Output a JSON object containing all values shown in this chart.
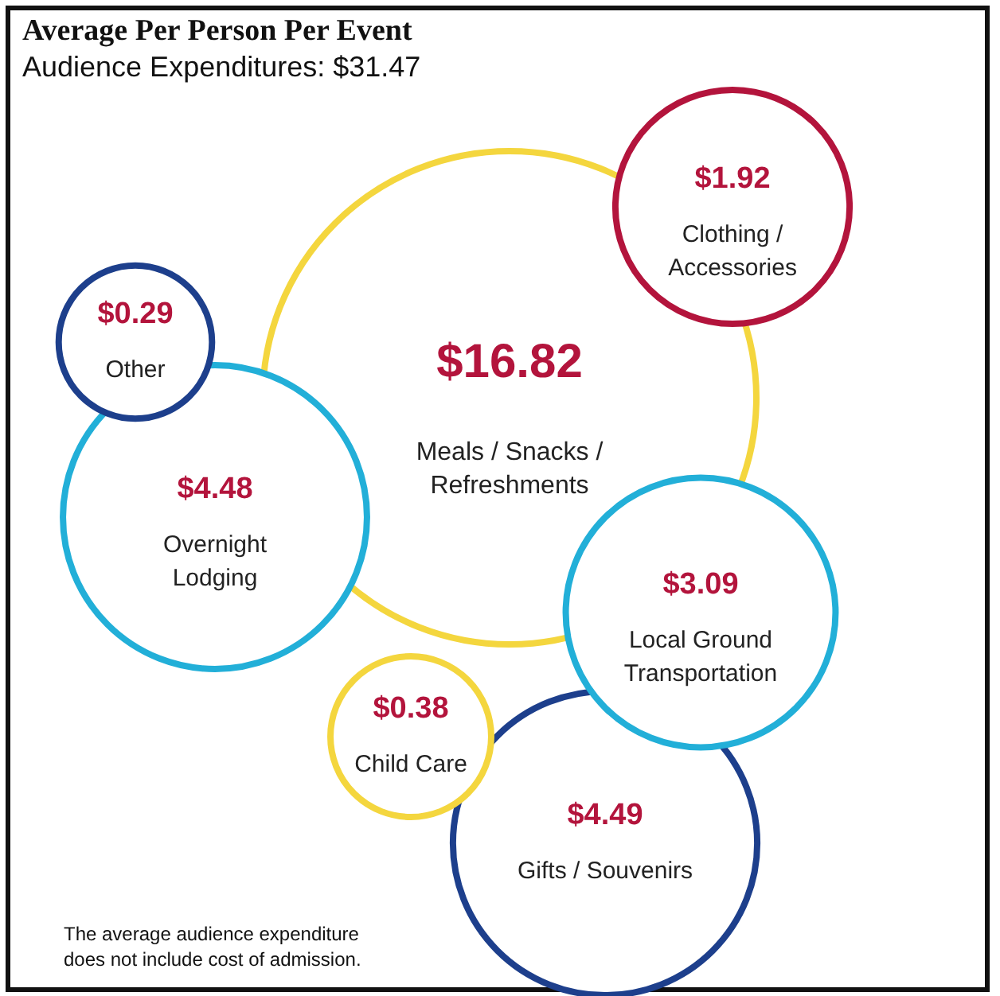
{
  "chart_data": {
    "type": "other",
    "title": "Average Per Person Per Event",
    "subtitle": "Audience Expenditures: $31.47",
    "categories": [
      "Meals / Snacks /\nRefreshments",
      "Overnight\nLodging",
      "Other",
      "Clothing /\nAccessories",
      "Gifts / Souvenirs",
      "Child Care",
      "Local Ground\nTransportation"
    ],
    "values": [
      16.82,
      4.48,
      0.29,
      1.92,
      4.49,
      0.38,
      3.09
    ],
    "value_labels": [
      "$16.82",
      "$4.48",
      "$0.29",
      "$1.92",
      "$4.49",
      "$0.38",
      "$3.09"
    ],
    "colors": [
      "#f4d63e",
      "#22afd8",
      "#1d3f8c",
      "#b3143c",
      "#1d3f8c",
      "#f4d63e",
      "#22afd8"
    ],
    "annotations": [
      "The average audience expenditure\ndoes not include cost of admission."
    ]
  }
}
